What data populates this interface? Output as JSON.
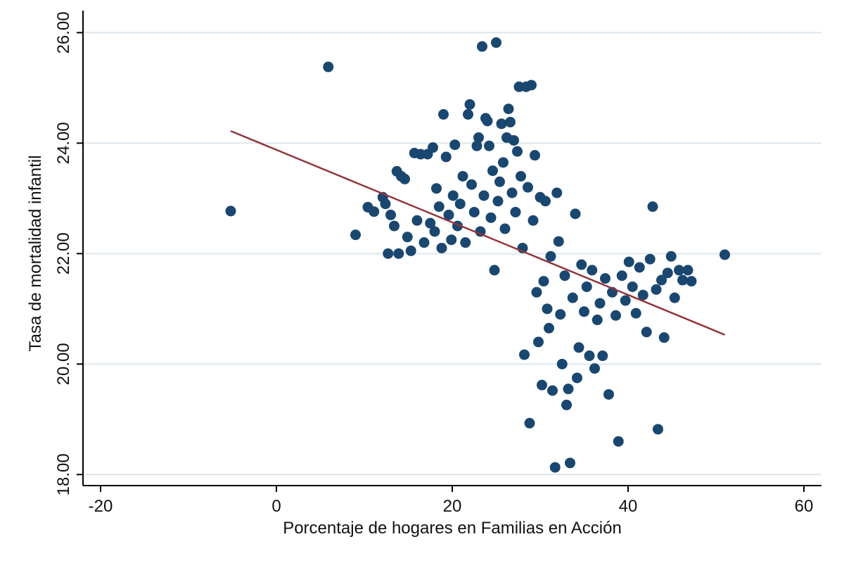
{
  "chart_data": {
    "type": "scatter",
    "title": "",
    "xlabel": "Porcentaje de hogares en Familias en Acción",
    "ylabel": "Tasa de mortalidad infantil",
    "xlim": [
      -22,
      62
    ],
    "ylim": [
      17.8,
      26.4
    ],
    "x_ticks": [
      -20,
      0,
      20,
      40,
      60
    ],
    "x_tick_labels": [
      "-20",
      "0",
      "20",
      "40",
      "60"
    ],
    "y_ticks": [
      18,
      20,
      22,
      24,
      26
    ],
    "y_tick_labels": [
      "18.00",
      "20.00",
      "22.00",
      "24.00",
      "26.00"
    ],
    "grid": "horizontal",
    "legend": "none",
    "colors": {
      "points": "#1a476f",
      "fit_line": "#90353b",
      "grid": "#dde6ec",
      "axis": "#000000",
      "background": "#ffffff"
    },
    "series": [
      {
        "type": "scatter",
        "points": [
          [
            -5.2,
            22.77
          ],
          [
            5.9,
            25.38
          ],
          [
            9.0,
            22.34
          ],
          [
            10.4,
            22.84
          ],
          [
            11.1,
            22.76
          ],
          [
            12.1,
            23.02
          ],
          [
            12.4,
            22.9
          ],
          [
            12.7,
            22.0
          ],
          [
            13.0,
            22.7
          ],
          [
            13.4,
            22.5
          ],
          [
            13.7,
            23.49
          ],
          [
            13.9,
            22.0
          ],
          [
            14.2,
            23.4
          ],
          [
            14.6,
            23.35
          ],
          [
            14.9,
            22.3
          ],
          [
            15.3,
            22.05
          ],
          [
            15.7,
            23.82
          ],
          [
            16.0,
            22.6
          ],
          [
            16.4,
            23.8
          ],
          [
            16.8,
            22.2
          ],
          [
            17.2,
            23.8
          ],
          [
            17.5,
            22.55
          ],
          [
            17.8,
            23.92
          ],
          [
            18.0,
            22.4
          ],
          [
            18.2,
            23.18
          ],
          [
            18.5,
            22.85
          ],
          [
            18.8,
            22.1
          ],
          [
            19.0,
            24.52
          ],
          [
            19.3,
            23.75
          ],
          [
            19.6,
            22.7
          ],
          [
            19.9,
            22.25
          ],
          [
            20.1,
            23.05
          ],
          [
            20.3,
            23.97
          ],
          [
            20.6,
            22.5
          ],
          [
            20.9,
            22.9
          ],
          [
            21.2,
            23.4
          ],
          [
            21.5,
            22.2
          ],
          [
            21.8,
            24.52
          ],
          [
            22.0,
            24.7
          ],
          [
            22.2,
            23.25
          ],
          [
            22.5,
            22.75
          ],
          [
            22.8,
            23.95
          ],
          [
            23.0,
            24.1
          ],
          [
            23.2,
            22.4
          ],
          [
            23.4,
            25.75
          ],
          [
            23.6,
            23.05
          ],
          [
            23.8,
            24.45
          ],
          [
            24.0,
            24.4
          ],
          [
            24.2,
            23.95
          ],
          [
            24.4,
            22.65
          ],
          [
            24.6,
            23.5
          ],
          [
            24.8,
            21.7
          ],
          [
            25.0,
            25.82
          ],
          [
            25.2,
            22.95
          ],
          [
            25.4,
            23.3
          ],
          [
            25.6,
            24.35
          ],
          [
            25.8,
            23.65
          ],
          [
            26.0,
            22.45
          ],
          [
            26.2,
            24.1
          ],
          [
            26.4,
            24.62
          ],
          [
            26.6,
            24.38
          ],
          [
            26.8,
            23.1
          ],
          [
            27.0,
            24.05
          ],
          [
            27.2,
            22.75
          ],
          [
            27.4,
            23.85
          ],
          [
            27.6,
            25.02
          ],
          [
            27.8,
            23.4
          ],
          [
            28.0,
            22.1
          ],
          [
            28.2,
            20.17
          ],
          [
            28.4,
            25.02
          ],
          [
            28.6,
            23.2
          ],
          [
            28.8,
            18.93
          ],
          [
            29.0,
            25.05
          ],
          [
            29.2,
            22.6
          ],
          [
            29.4,
            23.78
          ],
          [
            29.6,
            21.3
          ],
          [
            29.8,
            20.4
          ],
          [
            30.0,
            23.02
          ],
          [
            30.2,
            19.62
          ],
          [
            30.4,
            21.5
          ],
          [
            30.6,
            22.95
          ],
          [
            30.8,
            21.0
          ],
          [
            31.0,
            20.65
          ],
          [
            31.2,
            21.95
          ],
          [
            31.4,
            19.52
          ],
          [
            31.7,
            18.13
          ],
          [
            31.9,
            23.1
          ],
          [
            32.1,
            22.22
          ],
          [
            32.3,
            20.9
          ],
          [
            32.5,
            20.0
          ],
          [
            32.8,
            21.6
          ],
          [
            33.0,
            19.26
          ],
          [
            33.2,
            19.55
          ],
          [
            33.4,
            18.21
          ],
          [
            33.7,
            21.2
          ],
          [
            34.0,
            22.72
          ],
          [
            34.2,
            19.75
          ],
          [
            34.4,
            20.3
          ],
          [
            34.7,
            21.8
          ],
          [
            35.0,
            20.95
          ],
          [
            35.3,
            21.4
          ],
          [
            35.6,
            20.15
          ],
          [
            35.9,
            21.7
          ],
          [
            36.2,
            19.92
          ],
          [
            36.5,
            20.8
          ],
          [
            36.8,
            21.1
          ],
          [
            37.1,
            20.15
          ],
          [
            37.4,
            21.55
          ],
          [
            37.8,
            19.45
          ],
          [
            38.2,
            21.3
          ],
          [
            38.6,
            20.88
          ],
          [
            38.9,
            18.6
          ],
          [
            39.3,
            21.6
          ],
          [
            39.7,
            21.15
          ],
          [
            40.1,
            21.85
          ],
          [
            40.5,
            21.4
          ],
          [
            40.9,
            20.92
          ],
          [
            41.3,
            21.75
          ],
          [
            41.7,
            21.25
          ],
          [
            42.1,
            20.58
          ],
          [
            42.5,
            21.9
          ],
          [
            42.8,
            22.85
          ],
          [
            43.2,
            21.35
          ],
          [
            43.4,
            18.82
          ],
          [
            43.8,
            21.52
          ],
          [
            44.1,
            20.48
          ],
          [
            44.5,
            21.65
          ],
          [
            44.9,
            21.95
          ],
          [
            45.3,
            21.2
          ],
          [
            45.8,
            21.7
          ],
          [
            46.2,
            21.52
          ],
          [
            46.8,
            21.7
          ],
          [
            47.2,
            21.5
          ],
          [
            51.0,
            21.98
          ]
        ]
      },
      {
        "type": "line",
        "points": [
          [
            -5.2,
            24.22
          ],
          [
            51.0,
            20.53
          ]
        ]
      }
    ]
  }
}
